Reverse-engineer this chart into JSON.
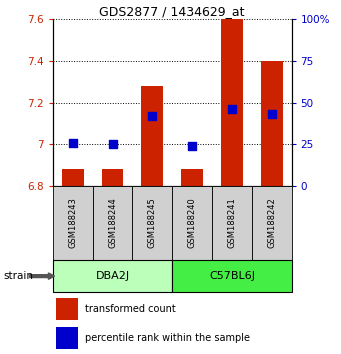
{
  "title": "GDS2877 / 1434629_at",
  "samples": [
    "GSM188243",
    "GSM188244",
    "GSM188245",
    "GSM188240",
    "GSM188241",
    "GSM188242"
  ],
  "transformed_counts": [
    6.88,
    6.88,
    7.28,
    6.88,
    7.6,
    7.4
  ],
  "percentile_ranks": [
    26,
    25,
    42,
    24,
    46,
    43
  ],
  "bar_bottom": 6.8,
  "ylim_left": [
    6.8,
    7.6
  ],
  "ylim_right": [
    0,
    100
  ],
  "yticks_left": [
    6.8,
    7.0,
    7.2,
    7.4,
    7.6
  ],
  "yticks_right": [
    0,
    25,
    50,
    75,
    100
  ],
  "ytick_labels_left": [
    "6.8",
    "7",
    "7.2",
    "7.4",
    "7.6"
  ],
  "ytick_labels_right": [
    "0",
    "25",
    "50",
    "75",
    "100%"
  ],
  "bar_color": "#CC2200",
  "dot_color": "#0000CC",
  "bar_width": 0.55,
  "dot_size": 30,
  "group_info": [
    {
      "label": "DBA2J",
      "start": 0,
      "end": 2,
      "color": "#BBFFBB"
    },
    {
      "label": "C57BL6J",
      "start": 3,
      "end": 5,
      "color": "#44EE44"
    }
  ],
  "label_strain": "strain",
  "title_fontsize": 9,
  "tick_fontsize": 7.5,
  "sample_fontsize": 6,
  "group_fontsize": 8,
  "legend_fontsize": 7,
  "figsize": [
    3.41,
    3.54
  ],
  "dpi": 100
}
